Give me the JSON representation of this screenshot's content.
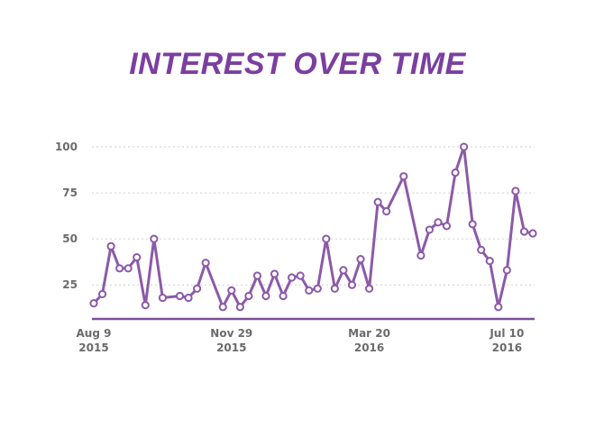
{
  "chart_data": {
    "type": "line",
    "title": "INTEREST OVER TIME",
    "xlabel": "",
    "ylabel": "",
    "ylim": [
      6.5,
      100
    ],
    "yticks": [
      25,
      50,
      75,
      100
    ],
    "grid": true,
    "x_tick_labels": [
      {
        "line1": "Aug 9",
        "line2": "2015",
        "index": 0
      },
      {
        "line1": "Nov 29",
        "line2": "2015",
        "index": 16
      },
      {
        "line1": "Mar 20",
        "line2": "2016",
        "index": 32
      },
      {
        "line1": "Jul 10",
        "line2": "2016",
        "index": 48
      }
    ],
    "series": [
      {
        "color": "#8c5aa8",
        "points": [
          [
            0,
            15
          ],
          [
            1,
            20
          ],
          [
            2,
            46
          ],
          [
            3,
            34
          ],
          [
            4,
            34
          ],
          [
            5,
            40
          ],
          [
            6,
            14
          ],
          [
            7,
            50
          ],
          [
            8,
            18
          ],
          [
            10,
            19
          ],
          [
            11,
            18
          ],
          [
            12,
            23
          ],
          [
            13,
            37
          ],
          [
            15,
            13
          ],
          [
            16,
            22
          ],
          [
            17,
            13
          ],
          [
            18,
            19
          ],
          [
            19,
            30
          ],
          [
            20,
            19
          ],
          [
            21,
            31
          ],
          [
            22,
            19
          ],
          [
            23,
            29
          ],
          [
            24,
            30
          ],
          [
            25,
            22
          ],
          [
            26,
            23
          ],
          [
            27,
            50
          ],
          [
            28,
            23
          ],
          [
            29,
            33
          ],
          [
            30,
            25
          ],
          [
            31,
            39
          ],
          [
            32,
            23
          ],
          [
            33,
            70
          ],
          [
            34,
            65
          ],
          [
            36,
            84
          ],
          [
            38,
            41
          ],
          [
            39,
            55
          ],
          [
            40,
            59
          ],
          [
            41,
            57
          ],
          [
            42,
            86
          ],
          [
            43,
            100
          ],
          [
            44,
            58
          ],
          [
            45,
            44
          ],
          [
            46,
            38
          ],
          [
            47,
            13
          ],
          [
            48,
            33
          ],
          [
            49,
            76
          ],
          [
            50,
            54
          ],
          [
            51,
            53
          ]
        ]
      }
    ]
  }
}
